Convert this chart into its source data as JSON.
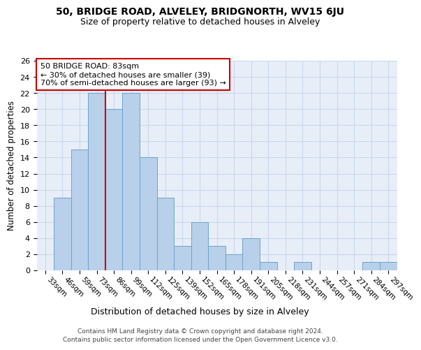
{
  "title1": "50, BRIDGE ROAD, ALVELEY, BRIDGNORTH, WV15 6JU",
  "title2": "Size of property relative to detached houses in Alveley",
  "xlabel": "Distribution of detached houses by size in Alveley",
  "ylabel": "Number of detached properties",
  "bar_labels": [
    "33sqm",
    "46sqm",
    "59sqm",
    "73sqm",
    "86sqm",
    "99sqm",
    "112sqm",
    "125sqm",
    "139sqm",
    "152sqm",
    "165sqm",
    "178sqm",
    "191sqm",
    "205sqm",
    "218sqm",
    "231sqm",
    "244sqm",
    "257sqm",
    "271sqm",
    "284sqm",
    "297sqm"
  ],
  "bar_values": [
    0,
    9,
    15,
    22,
    20,
    22,
    14,
    9,
    3,
    6,
    3,
    2,
    4,
    1,
    0,
    1,
    0,
    0,
    0,
    1,
    1
  ],
  "bar_color": "#b8d0ea",
  "bar_edge_color": "#6ba3cd",
  "grid_color": "#c8d8ec",
  "background_color": "#e8eef8",
  "annotation_text_line1": "50 BRIDGE ROAD: 83sqm",
  "annotation_text_line2": "← 30% of detached houses are smaller (39)",
  "annotation_text_line3": "70% of semi-detached houses are larger (93) →",
  "red_line_x": 3.5,
  "ylim": [
    0,
    26
  ],
  "yticks": [
    0,
    2,
    4,
    6,
    8,
    10,
    12,
    14,
    16,
    18,
    20,
    22,
    24,
    26
  ],
  "footer_line1": "Contains HM Land Registry data © Crown copyright and database right 2024.",
  "footer_line2": "Contains public sector information licensed under the Open Government Licence v3.0."
}
